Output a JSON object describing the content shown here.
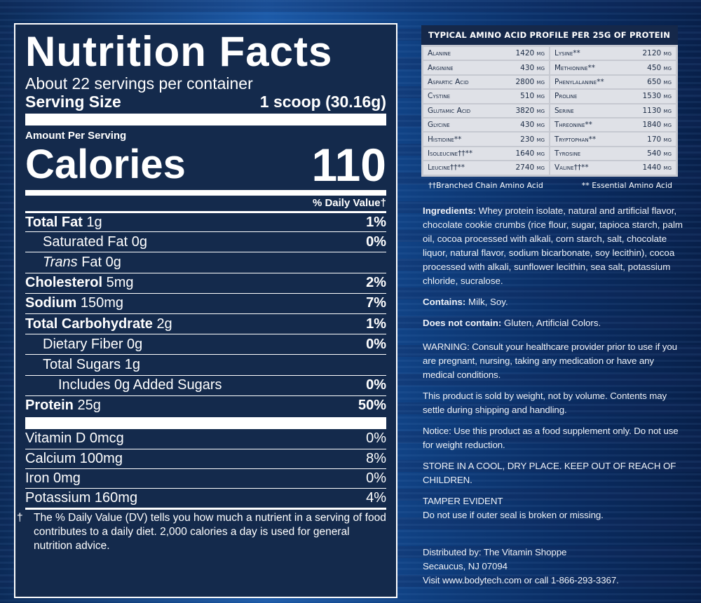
{
  "nutrition": {
    "title": "Nutrition Facts",
    "servings_per_container": "About 22 servings per container",
    "serving_size_label": "Serving Size",
    "serving_size_value": "1 scoop (30.16g)",
    "amount_per_serving": "Amount Per Serving",
    "calories_label": "Calories",
    "calories_value": "110",
    "dv_header": "% Daily Value†",
    "rows": [
      {
        "label": "Total Fat",
        "amount": "1g",
        "pct": "1%"
      },
      {
        "label": "Saturated Fat",
        "amount": "0g",
        "pct": "0%"
      },
      {
        "label_italic": "Trans",
        "label": "Fat",
        "amount": "0g",
        "pct": ""
      },
      {
        "label": "Cholesterol",
        "amount": "5mg",
        "pct": "2%"
      },
      {
        "label": "Sodium",
        "amount": "150mg",
        "pct": "7%"
      },
      {
        "label": "Total Carbohydrate",
        "amount": "2g",
        "pct": "1%"
      },
      {
        "label": "Dietary Fiber",
        "amount": "0g",
        "pct": "0%"
      },
      {
        "label": "Total Sugars",
        "amount": "1g",
        "pct": ""
      },
      {
        "label": "Includes 0g Added Sugars",
        "amount": "",
        "pct": "0%"
      },
      {
        "label": "Protein",
        "amount": "25g",
        "pct": "50%"
      }
    ],
    "vitamins": [
      {
        "label": "Vitamin D 0mcg",
        "pct": "0%"
      },
      {
        "label": "Calcium 100mg",
        "pct": "8%"
      },
      {
        "label": "Iron 0mg",
        "pct": "0%"
      },
      {
        "label": "Potassium 160mg",
        "pct": "4%"
      }
    ],
    "footnote_symbol": "†",
    "footnote": "The % Daily Value (DV) tells you how much a nutrient in a serving of food contributes to a daily diet. 2,000 calories a day is used for general nutrition advice."
  },
  "amino": {
    "title": "TYPICAL AMINO ACID PROFILE PER 25G OF PROTEIN",
    "rows": [
      [
        {
          "name": "Alanine",
          "value": "1420 mg"
        },
        {
          "name": "Lysine**",
          "value": "2120 mg"
        }
      ],
      [
        {
          "name": "Arginine",
          "value": "430 mg"
        },
        {
          "name": "Methionine**",
          "value": "450 mg"
        }
      ],
      [
        {
          "name": "Aspartic Acid",
          "value": "2800 mg"
        },
        {
          "name": "Phenylalanine**",
          "value": "650 mg"
        }
      ],
      [
        {
          "name": "Cystine",
          "value": "510 mg"
        },
        {
          "name": "Proline",
          "value": "1530 mg"
        }
      ],
      [
        {
          "name": "Glutamic Acid",
          "value": "3820 mg"
        },
        {
          "name": "Serine",
          "value": "1130 mg"
        }
      ],
      [
        {
          "name": "Glycine",
          "value": "430 mg"
        },
        {
          "name": "Threonine**",
          "value": "1840 mg"
        }
      ],
      [
        {
          "name": "Histidine**",
          "value": "230 mg"
        },
        {
          "name": "Tryptophan**",
          "value": "170 mg"
        }
      ],
      [
        {
          "name": "Isoleucine††**",
          "value": "1640 mg"
        },
        {
          "name": "Tyrosine",
          "value": "540 mg"
        }
      ],
      [
        {
          "name": "Leucine††**",
          "value": "2740 mg"
        },
        {
          "name": "Valine††**",
          "value": "1440 mg"
        }
      ]
    ],
    "legend_bcaa": "††Branched Chain Amino Acid",
    "legend_essential": "** Essential Amino Acid"
  },
  "info": {
    "ingredients_label": "Ingredients:",
    "ingredients_text": "Whey protein isolate, natural and artificial flavor, chocolate cookie crumbs (rice flour, sugar, tapioca starch, palm oil, cocoa processed with alkali, corn starch, salt, chocolate liquor, natural flavor, sodium bicarbonate, soy lecithin), cocoa processed with alkali, sunflower lecithin, sea salt, potassium chloride, sucralose.",
    "contains_label": "Contains:",
    "contains_text": "Milk, Soy.",
    "not_contain_label": "Does not contain:",
    "not_contain_text": "Gluten, Artificial Colors.",
    "warning": "WARNING: Consult your healthcare provider prior to use if you are pregnant, nursing, taking any medication or have any medical conditions.",
    "sold_by_weight": "This product is sold by weight, not by volume. Contents may settle during shipping and handling.",
    "notice": "Notice: Use this product as a food supplement only. Do not use for weight reduction.",
    "store": "STORE IN A COOL, DRY PLACE. KEEP OUT OF REACH OF CHILDREN.",
    "tamper_title": "TAMPER EVIDENT",
    "tamper_text": "Do not use if outer seal is broken or missing.",
    "distributed_by": "Distributed by: The Vitamin Shoppe",
    "address": "Secaucus, NJ 07094",
    "visit": "Visit www.bodytech.com or call 1-866-293-3367."
  },
  "colors": {
    "panel_bg": "#142a4c",
    "amino_cell_bg": "#dfe1e7",
    "amino_header_bg": "#15284a",
    "background_blue": "#1c5aa8"
  }
}
